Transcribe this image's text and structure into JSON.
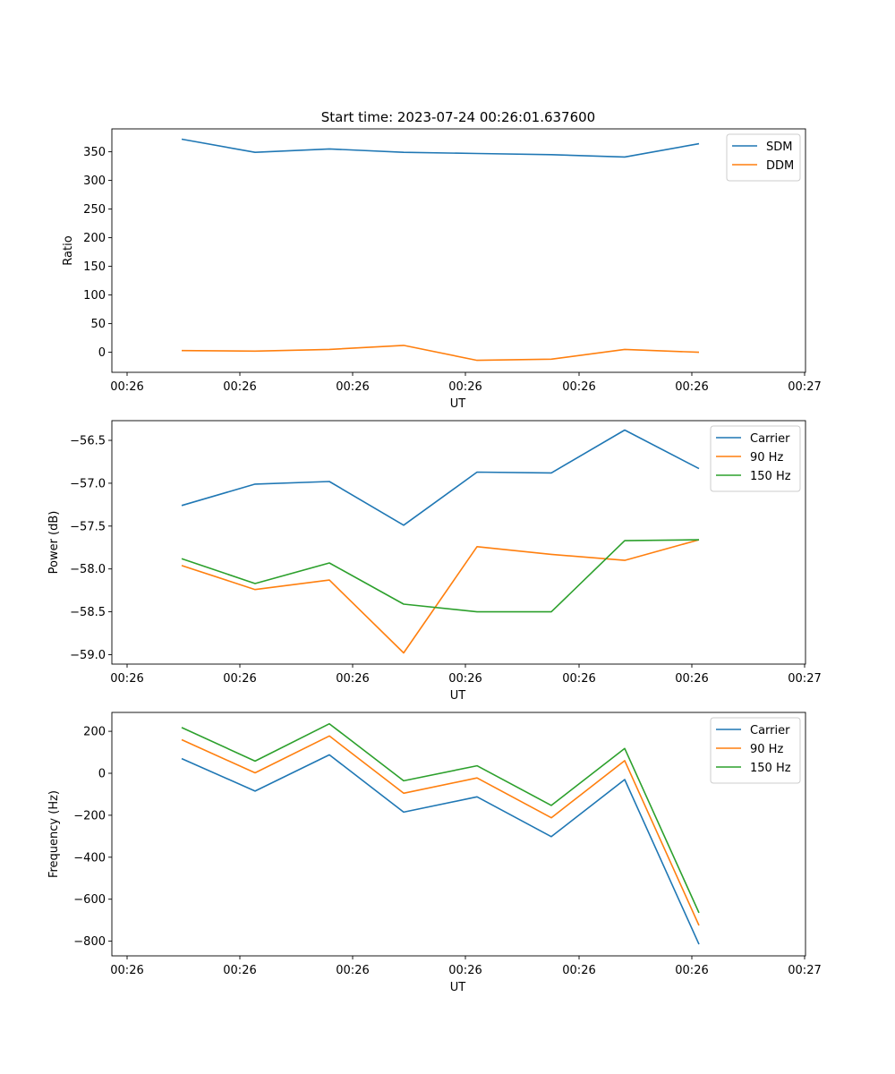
{
  "figure_title": "Start time: 2023-07-24 00:26:01.637600",
  "colors": {
    "blue": "#1f77b4",
    "orange": "#ff7f0e",
    "green": "#2ca02c"
  },
  "chart_data": [
    {
      "type": "line",
      "title": "Start time: 2023-07-24 00:26:01.637600",
      "xlabel": "UT",
      "ylabel": "Ratio",
      "x_tick_labels": [
        "00:26",
        "00:26",
        "00:26",
        "00:26",
        "00:26",
        "00:26",
        "00:26",
        "00:27"
      ],
      "yticks": [
        0,
        50,
        100,
        150,
        200,
        250,
        300,
        350
      ],
      "ylim": [
        -35,
        390
      ],
      "legend_position": "top-right",
      "grid": false,
      "series": [
        {
          "name": "SDM",
          "color": "#1f77b4",
          "values": [
            372,
            349,
            355,
            349,
            347,
            345,
            341,
            364
          ]
        },
        {
          "name": "DDM",
          "color": "#ff7f0e",
          "values": [
            3,
            2,
            5,
            12,
            -14,
            -12,
            5,
            0
          ]
        }
      ]
    },
    {
      "type": "line",
      "xlabel": "UT",
      "ylabel": "Power (dB)",
      "x_tick_labels": [
        "00:26",
        "00:26",
        "00:26",
        "00:26",
        "00:26",
        "00:26",
        "00:26",
        "00:27"
      ],
      "yticks": [
        -59.0,
        -58.5,
        -58.0,
        -57.5,
        -57.0,
        -56.5
      ],
      "ytick_labels": [
        "−59.0",
        "−58.5",
        "−58.0",
        "−57.5",
        "−57.0",
        "−56.5"
      ],
      "ylim": [
        -59.11,
        -56.27
      ],
      "legend_position": "top-right",
      "grid": false,
      "series": [
        {
          "name": "Carrier",
          "color": "#1f77b4",
          "values": [
            -57.26,
            -57.01,
            -56.98,
            -57.49,
            -56.87,
            -56.88,
            -56.38,
            -56.83
          ]
        },
        {
          "name": "90 Hz",
          "color": "#ff7f0e",
          "values": [
            -57.96,
            -58.24,
            -58.13,
            -58.98,
            -57.74,
            -57.83,
            -57.9,
            -57.66
          ]
        },
        {
          "name": "150 Hz",
          "color": "#2ca02c",
          "values": [
            -57.88,
            -58.17,
            -57.93,
            -58.41,
            -58.5,
            -58.5,
            -57.67,
            -57.66
          ]
        }
      ]
    },
    {
      "type": "line",
      "xlabel": "UT",
      "ylabel": "Frequency (Hz)",
      "x_tick_labels": [
        "00:26",
        "00:26",
        "00:26",
        "00:26",
        "00:26",
        "00:26",
        "00:26",
        "00:27"
      ],
      "yticks": [
        -800,
        -600,
        -400,
        -200,
        0,
        200
      ],
      "ytick_labels": [
        "−800",
        "−600",
        "−400",
        "−200",
        "0",
        "200"
      ],
      "ylim": [
        -870,
        290
      ],
      "legend_position": "top-right",
      "grid": false,
      "series": [
        {
          "name": "Carrier",
          "color": "#1f77b4",
          "values": [
            70,
            -85,
            88,
            -185,
            -112,
            -302,
            -30,
            -815
          ]
        },
        {
          "name": "90 Hz",
          "color": "#ff7f0e",
          "values": [
            160,
            2,
            178,
            -95,
            -22,
            -212,
            60,
            -725
          ]
        },
        {
          "name": "150 Hz",
          "color": "#2ca02c",
          "values": [
            218,
            58,
            236,
            -36,
            36,
            -153,
            118,
            -665
          ]
        }
      ]
    }
  ]
}
